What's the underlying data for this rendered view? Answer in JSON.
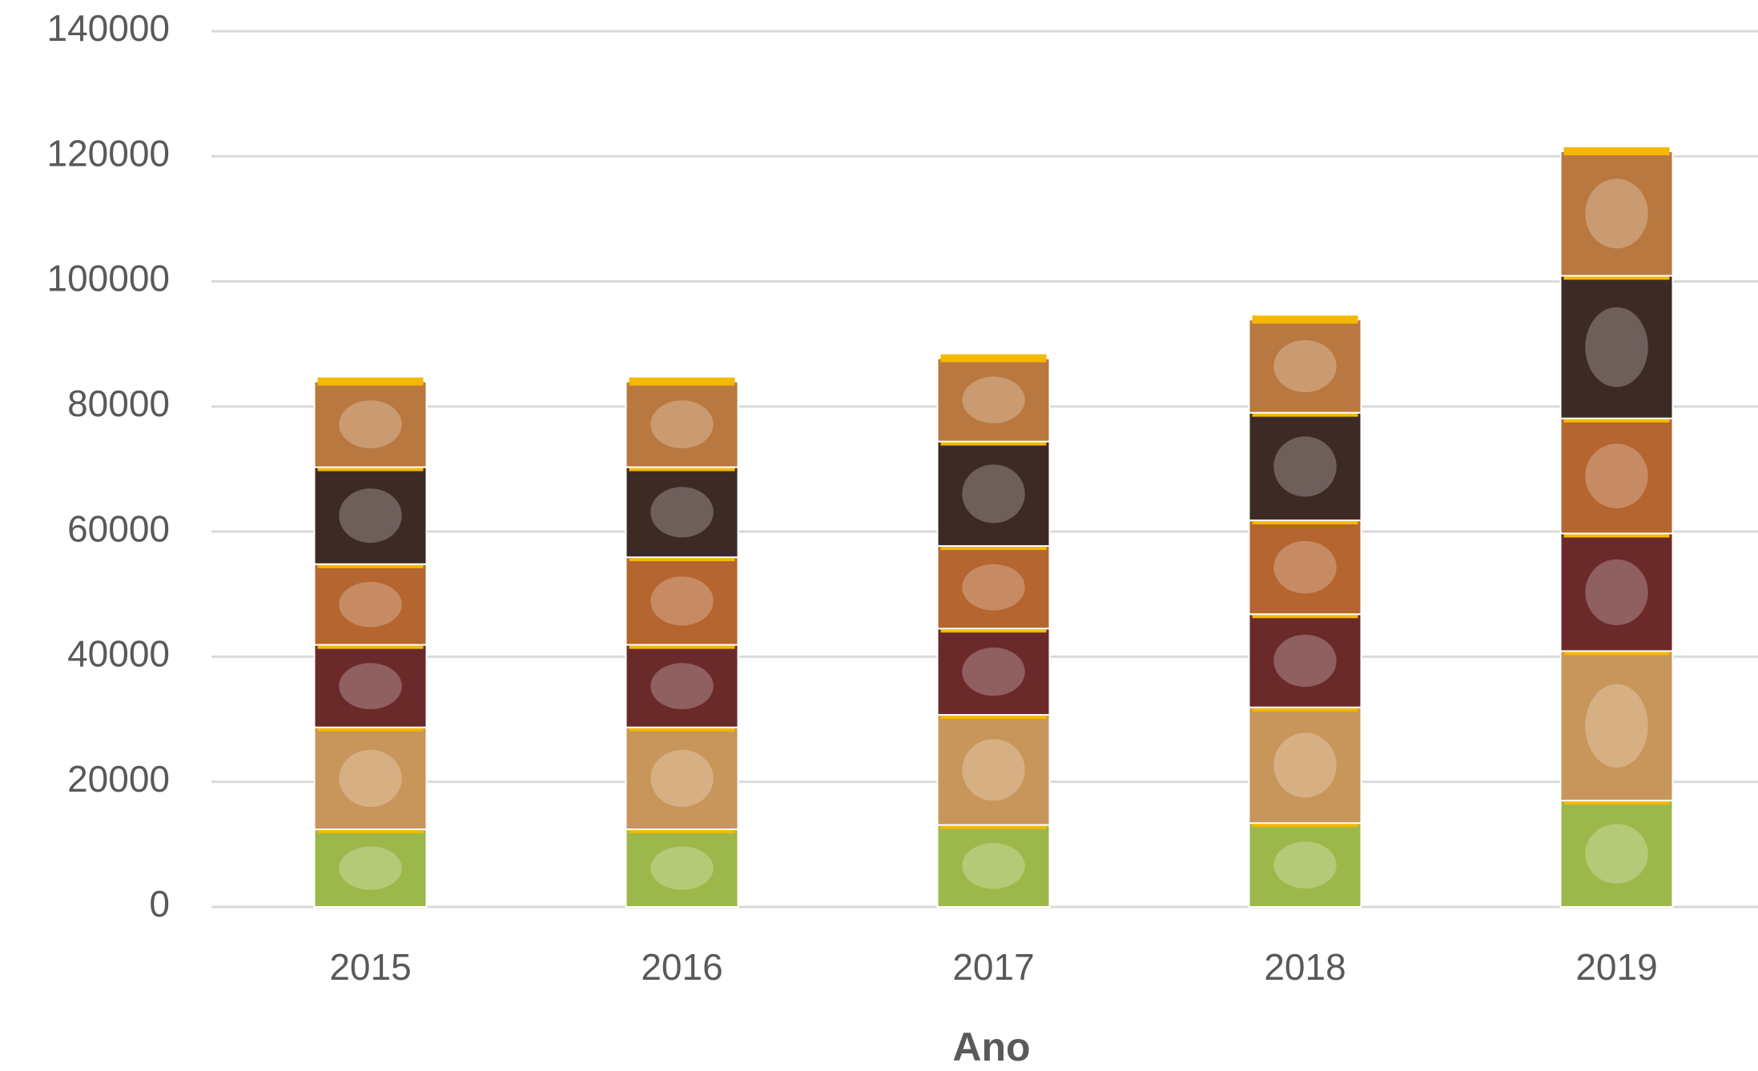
{
  "chart_data": {
    "type": "stacked_bar",
    "xlabel": "Ano",
    "categories": [
      "2015",
      "2016",
      "2017",
      "2018",
      "2019"
    ],
    "series": [
      {
        "color": "#9cb84a",
        "values": [
          12400,
          12400,
          13100,
          13400,
          17000
        ]
      },
      {
        "color": "#c8955a",
        "values": [
          16300,
          16300,
          17600,
          18500,
          23900
        ]
      },
      {
        "color": "#6b2a2a",
        "values": [
          13200,
          13200,
          13800,
          14900,
          18800
        ]
      },
      {
        "color": "#b5652f",
        "values": [
          12900,
          14000,
          13200,
          15000,
          18400
        ]
      },
      {
        "color": "#3e2a25",
        "values": [
          15500,
          14400,
          16700,
          17200,
          22800
        ]
      },
      {
        "color": "#b97840",
        "values": [
          13700,
          13700,
          13300,
          14900,
          19900
        ]
      }
    ],
    "ylim": [
      0,
      140000
    ],
    "yticks": [
      0,
      20000,
      40000,
      60000,
      80000,
      100000,
      120000,
      140000
    ],
    "grid": true
  }
}
